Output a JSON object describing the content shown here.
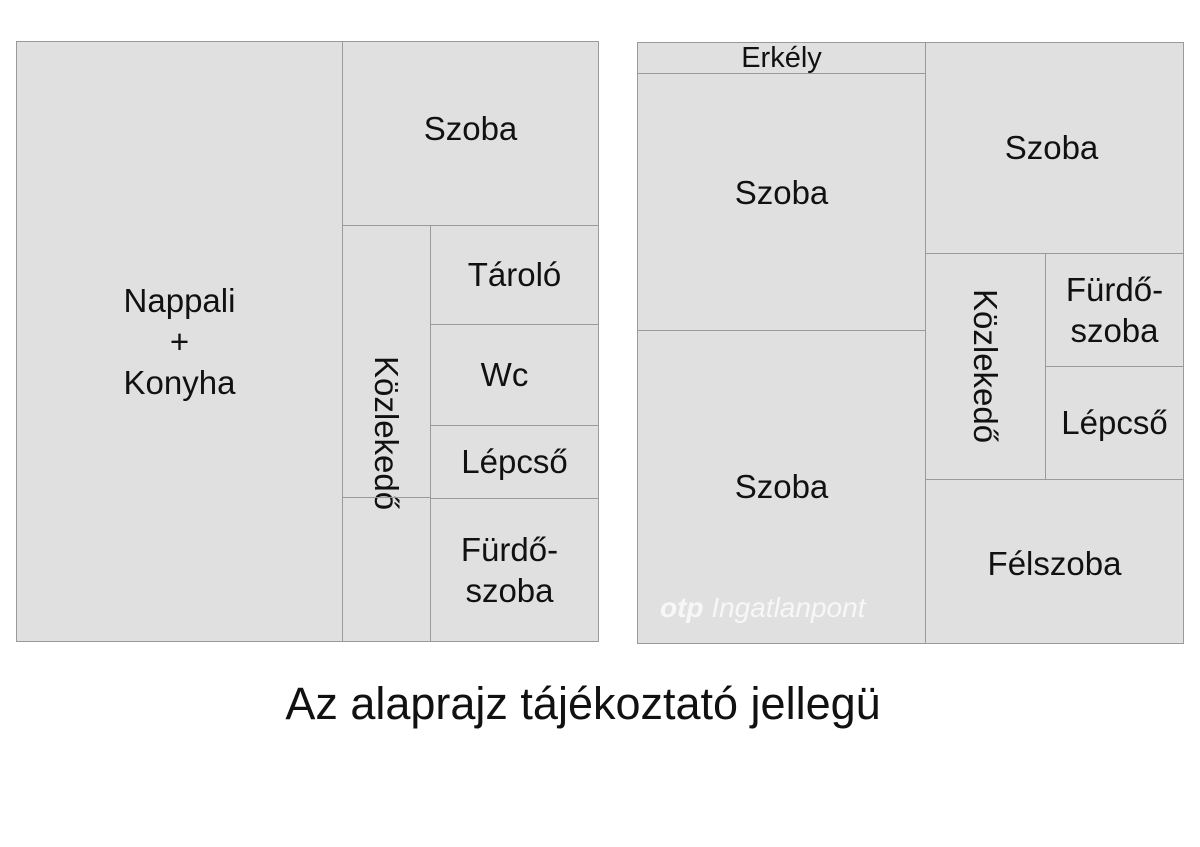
{
  "left_plan": {
    "nappali": [
      "Nappali",
      "+",
      "Konyha"
    ],
    "szoba": "Szoba",
    "kozlekedo": "Közlekedő",
    "tarolo": "Tároló",
    "wc": "Wc",
    "lepcso": "Lépcső",
    "furdoszoba": [
      "Fürdő-",
      "szoba"
    ]
  },
  "right_plan": {
    "erkely": "Erkély",
    "szoba_1": "Szoba",
    "szoba_2": "Szoba",
    "szoba_3": "Szoba",
    "kozlekedo": "Közlekedő",
    "furdoszoba": [
      "Fürdő-",
      "szoba"
    ],
    "lepcso": "Lépcső",
    "felszoba": "Félszoba"
  },
  "watermark": {
    "brand": "otp",
    "text": "Ingatlanpont"
  },
  "caption": "Az alaprajz tájékoztató jellegü",
  "colors": {
    "room_fill": "#e0e0e0",
    "wall": "#9a9a9a"
  }
}
